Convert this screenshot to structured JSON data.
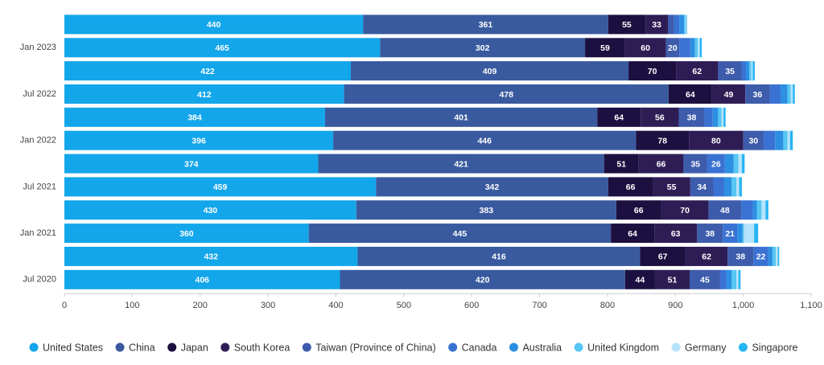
{
  "chart_data": {
    "type": "stacked-bar-horizontal",
    "categories": [
      null,
      "Jan 2023",
      null,
      "Jul 2022",
      null,
      "Jan 2022",
      null,
      "Jul 2021",
      null,
      "Jan 2021",
      null,
      "Jul 2020"
    ],
    "series": [
      {
        "name": "United States",
        "color": "#13a6ea",
        "values": [
          440,
          465,
          422,
          412,
          384,
          396,
          374,
          459,
          430,
          360,
          432,
          406
        ]
      },
      {
        "name": "China",
        "color": "#3a5a9f",
        "values": [
          361,
          302,
          409,
          478,
          401,
          446,
          421,
          342,
          383,
          445,
          416,
          420
        ]
      },
      {
        "name": "Japan",
        "color": "#1c1040",
        "values": [
          55,
          59,
          70,
          64,
          64,
          78,
          51,
          66,
          66,
          64,
          67,
          44
        ]
      },
      {
        "name": "South Korea",
        "color": "#2e1d55",
        "values": [
          33,
          60,
          62,
          49,
          56,
          80,
          66,
          55,
          70,
          63,
          62,
          51
        ]
      },
      {
        "name": "Taiwan (Province of China)",
        "color": "#3d5cab",
        "values": [
          9,
          20,
          35,
          36,
          38,
          30,
          35,
          34,
          48,
          38,
          38,
          45
        ]
      },
      {
        "name": "Canada",
        "color": "#3a72d4",
        "values": [
          8,
          16,
          6,
          16,
          12,
          17,
          26,
          16,
          17,
          21,
          22,
          9
        ]
      },
      {
        "name": "Australia",
        "color": "#2d8fe2",
        "values": [
          7,
          7,
          5,
          10,
          8,
          12,
          13,
          11,
          6,
          8,
          6,
          8
        ]
      },
      {
        "name": "United Kingdom",
        "color": "#56c6f2",
        "values": [
          2,
          4,
          3,
          5,
          5,
          6,
          7,
          7,
          7,
          2,
          5,
          7
        ]
      },
      {
        "name": "Germany",
        "color": "#b5e3fb",
        "values": [
          1,
          3,
          2,
          3,
          3,
          4,
          5,
          4,
          6,
          15,
          3,
          3
        ]
      },
      {
        "name": "Singapore",
        "color": "#27b4f3",
        "values": [
          1,
          3,
          3,
          3,
          3,
          4,
          4,
          4,
          4,
          6,
          2,
          3
        ]
      }
    ],
    "xlim": [
      0,
      1100
    ],
    "xticks": [
      0,
      100,
      200,
      300,
      400,
      500,
      600,
      700,
      800,
      900,
      {
        "value": 1000,
        "label": "1,000"
      },
      {
        "value": 1100,
        "label": "1,100"
      }
    ],
    "legend": "bottom"
  }
}
